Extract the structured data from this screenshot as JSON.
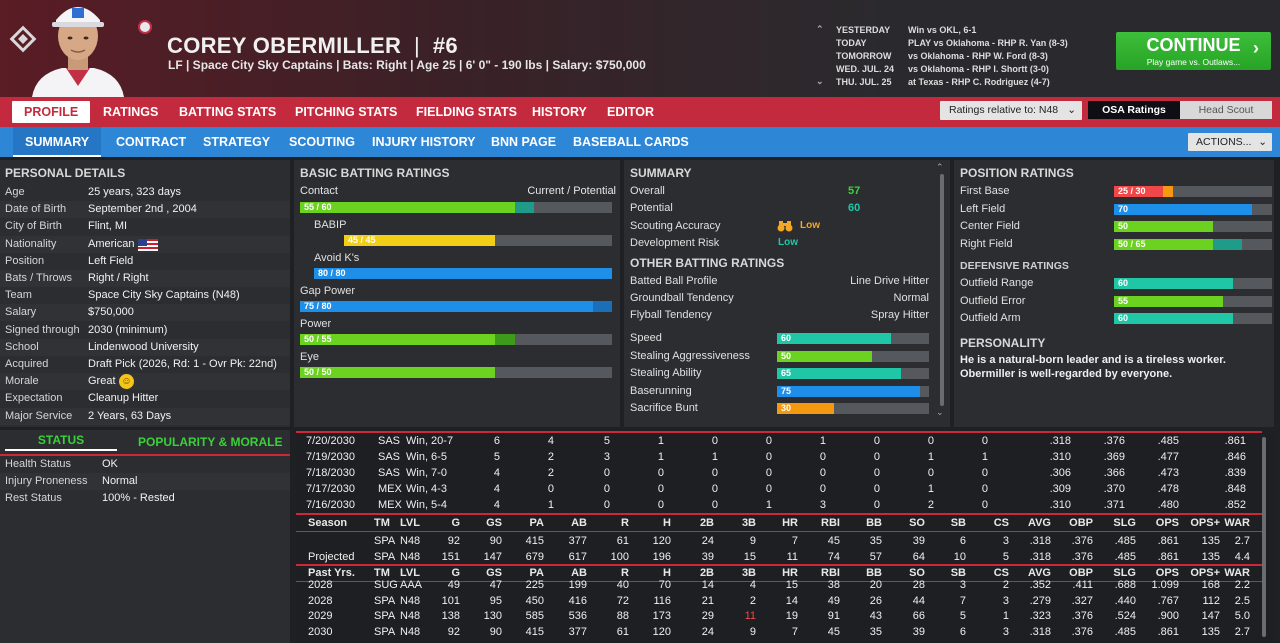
{
  "header": {
    "name": "COREY OBERMILLER",
    "number_sep": "|",
    "number": "#6",
    "info": "LF | Space City Sky Captains  |  Bats: Right  |  Age 25  |  6' 0\" - 190 lbs  |  Salary: $750,000",
    "schedule": [
      {
        "day": "YESTERDAY",
        "game": "Win vs OKL, 6-1"
      },
      {
        "day": "TODAY",
        "game": "PLAY vs Oklahoma - RHP R. Yan (8-3)"
      },
      {
        "day": "TOMORROW",
        "game": "vs Oklahoma - RHP W. Ford (8-3)"
      },
      {
        "day": "WED. JUL. 24",
        "game": "vs Oklahoma - RHP I. Shortt (3-0)"
      },
      {
        "day": "THU. JUL. 25",
        "game": "at Texas - RHP C. Rodriguez (4-7)"
      }
    ],
    "continue_label": "CONTINUE",
    "continue_sub": "Play game vs. Outlaws..."
  },
  "nav_main": [
    "PROFILE",
    "RATINGS",
    "BATTING STATS",
    "PITCHING STATS",
    "FIELDING STATS",
    "HISTORY",
    "EDITOR"
  ],
  "ratings_relative": "Ratings relative to: N48",
  "osa_label": "OSA Ratings",
  "scout_label": "Head Scout",
  "nav_sub": [
    "SUMMARY",
    "CONTRACT",
    "STRATEGY",
    "SCOUTING",
    "INJURY HISTORY",
    "BNN PAGE",
    "BASEBALL CARDS"
  ],
  "actions_label": "ACTIONS...",
  "personal": {
    "title": "PERSONAL DETAILS",
    "rows": [
      {
        "k": "Age",
        "v": "25 years, 323 days"
      },
      {
        "k": "Date of Birth",
        "v": "September 2nd , 2004"
      },
      {
        "k": "City of Birth",
        "v": "Flint, MI"
      },
      {
        "k": "Nationality",
        "v": "American"
      },
      {
        "k": "Position",
        "v": "Left Field"
      },
      {
        "k": "Bats / Throws",
        "v": "Right / Right"
      },
      {
        "k": "Team",
        "v": "Space City Sky Captains (N48)"
      },
      {
        "k": "Salary",
        "v": "$750,000"
      },
      {
        "k": "Signed through",
        "v": "2030 (minimum)"
      },
      {
        "k": "School",
        "v": "Lindenwood University"
      },
      {
        "k": "Acquired",
        "v": "Draft Pick (2026, Rd: 1 - Ovr Pk: 22nd)"
      },
      {
        "k": "Morale",
        "v": "Great"
      },
      {
        "k": "Expectation",
        "v": "Cleanup Hitter"
      },
      {
        "k": "Major Service",
        "v": "2 Years, 63 Days"
      }
    ]
  },
  "status": {
    "tab1": "STATUS",
    "tab2": "POPULARITY & MORALE",
    "rows": [
      {
        "k": "Health Status",
        "v": "OK"
      },
      {
        "k": "Injury Proneness",
        "v": "Normal"
      },
      {
        "k": "Rest Status",
        "v": "100% - Rested"
      }
    ]
  },
  "batting": {
    "title": "BASIC BATTING RATINGS",
    "cp_label": "Current / Potential",
    "ratings": [
      {
        "name": "Contact",
        "label": "55 / 60",
        "cur": 55,
        "pot": 60,
        "color": "#6bd21f",
        "pcolor": "#1f9b8a"
      },
      {
        "name": "BABIP",
        "label": "45 / 45",
        "cur": 45,
        "pot": 45,
        "color": "#f2cf16",
        "pcolor": "#f2cf16"
      },
      {
        "name": "Avoid K's",
        "label": "80 / 80",
        "cur": 80,
        "pot": 80,
        "color": "#1e8fe8",
        "pcolor": "#1e8fe8"
      },
      {
        "name": "Gap Power",
        "label": "75 / 80",
        "cur": 75,
        "pot": 80,
        "color": "#1e8fe8",
        "pcolor": "#1a6fb8"
      },
      {
        "name": "Power",
        "label": "50 / 55",
        "cur": 50,
        "pot": 55,
        "color": "#6bd21f",
        "pcolor": "#3e9a1a"
      },
      {
        "name": "Eye",
        "label": "50 / 50",
        "cur": 50,
        "pot": 50,
        "color": "#6bd21f",
        "pcolor": "#6bd21f"
      }
    ]
  },
  "summary": {
    "title": "SUMMARY",
    "overall_label": "Overall",
    "overall": "57",
    "potential_label": "Potential",
    "potential": "60",
    "scouting_label": "Scouting Accuracy",
    "scouting": "Low",
    "dev_label": "Development Risk",
    "dev": "Low",
    "other_title": "OTHER BATTING RATINGS",
    "other": [
      {
        "k": "Batted Ball Profile",
        "v": "Line Drive Hitter"
      },
      {
        "k": "Groundball Tendency",
        "v": "Normal"
      },
      {
        "k": "Flyball Tendency",
        "v": "Spray Hitter"
      }
    ],
    "bars": [
      {
        "k": "Speed",
        "label": "60",
        "val": 60,
        "color": "#1fc7a6"
      },
      {
        "k": "Stealing Aggressiveness",
        "label": "50",
        "val": 50,
        "color": "#6bd21f"
      },
      {
        "k": "Stealing Ability",
        "label": "65",
        "val": 65,
        "color": "#1fc7a6"
      },
      {
        "k": "Baserunning",
        "label": "75",
        "val": 75,
        "color": "#1e8fe8"
      },
      {
        "k": "Sacrifice Bunt",
        "label": "30",
        "val": 30,
        "color": "#f59a10"
      }
    ]
  },
  "position": {
    "title": "POSITION RATINGS",
    "ratings": [
      {
        "k": "First Base",
        "label": "25 / 30",
        "cur": 25,
        "pot": 30,
        "color": "#f04848",
        "pcolor": "#f59a10"
      },
      {
        "k": "Left Field",
        "label": "70",
        "cur": 70,
        "pot": 70,
        "color": "#1e8fe8",
        "pcolor": "#1e8fe8"
      },
      {
        "k": "Center Field",
        "label": "50",
        "cur": 50,
        "pot": 50,
        "color": "#6bd21f",
        "pcolor": "#6bd21f"
      },
      {
        "k": "Right Field",
        "label": "50 / 65",
        "cur": 50,
        "pot": 65,
        "color": "#6bd21f",
        "pcolor": "#1f9b8a"
      }
    ],
    "def_title": "DEFENSIVE RATINGS",
    "def": [
      {
        "k": "Outfield Range",
        "label": "60",
        "val": 60,
        "color": "#1fc7a6"
      },
      {
        "k": "Outfield Error",
        "label": "55",
        "val": 55,
        "color": "#6bd21f"
      },
      {
        "k": "Outfield Arm",
        "label": "60",
        "val": 60,
        "color": "#1fc7a6"
      }
    ],
    "personality_title": "PERSONALITY",
    "personality": "He is a natural-born leader and is a tireless worker. Obermiller is well-regarded by everyone."
  },
  "stats": {
    "games": [
      [
        "7/20/2030",
        "SAS",
        "Win, 20-7",
        "6",
        "4",
        "5",
        "1",
        "0",
        "0",
        "1",
        "0",
        "0",
        "0",
        ".318",
        ".376",
        ".485",
        ".861"
      ],
      [
        "7/19/2030",
        "SAS",
        "Win, 6-5",
        "5",
        "2",
        "3",
        "1",
        "1",
        "0",
        "0",
        "0",
        "1",
        "1",
        ".310",
        ".369",
        ".477",
        ".846"
      ],
      [
        "7/18/2030",
        "SAS",
        "Win, 7-0",
        "4",
        "2",
        "0",
        "0",
        "0",
        "0",
        "0",
        "0",
        "0",
        "0",
        ".306",
        ".366",
        ".473",
        ".839"
      ],
      [
        "7/17/2030",
        "MEX",
        "Win, 4-3",
        "4",
        "0",
        "0",
        "0",
        "0",
        "0",
        "0",
        "0",
        "1",
        "0",
        ".309",
        ".370",
        ".478",
        ".848"
      ],
      [
        "7/16/2030",
        "MEX",
        "Win, 5-4",
        "4",
        "1",
        "0",
        "0",
        "0",
        "1",
        "3",
        "0",
        "2",
        "0",
        ".310",
        ".371",
        ".480",
        ".852"
      ]
    ],
    "season_header": [
      "Season",
      "TM",
      "LVL",
      "G",
      "GS",
      "PA",
      "AB",
      "R",
      "H",
      "2B",
      "3B",
      "HR",
      "RBI",
      "BB",
      "SO",
      "SB",
      "CS",
      "AVG",
      "OBP",
      "SLG",
      "OPS",
      "OPS+",
      "WAR"
    ],
    "season_rows": [
      [
        "",
        "SPA",
        "N48",
        "92",
        "90",
        "415",
        "377",
        "61",
        "120",
        "24",
        "9",
        "7",
        "45",
        "35",
        "39",
        "6",
        "3",
        ".318",
        ".376",
        ".485",
        ".861",
        "135",
        "2.7"
      ],
      [
        "Projected",
        "SPA",
        "N48",
        "151",
        "147",
        "679",
        "617",
        "100",
        "196",
        "39",
        "15",
        "11",
        "74",
        "57",
        "64",
        "10",
        "5",
        ".318",
        ".376",
        ".485",
        ".861",
        "135",
        "4.4"
      ]
    ],
    "past_header": [
      "Past Yrs.",
      "TM",
      "LVL",
      "G",
      "GS",
      "PA",
      "AB",
      "R",
      "H",
      "2B",
      "3B",
      "HR",
      "RBI",
      "BB",
      "SO",
      "SB",
      "CS",
      "AVG",
      "OBP",
      "SLG",
      "OPS",
      "OPS+",
      "WAR"
    ],
    "past_rows": [
      [
        "2028",
        "SUG",
        "AAA",
        "49",
        "47",
        "225",
        "199",
        "40",
        "70",
        "14",
        "4",
        "15",
        "38",
        "20",
        "28",
        "3",
        "2",
        ".352",
        ".411",
        ".688",
        "1.099",
        "168",
        "2.2"
      ],
      [
        "2028",
        "SPA",
        "N48",
        "101",
        "95",
        "450",
        "416",
        "72",
        "116",
        "21",
        "2",
        "14",
        "49",
        "26",
        "44",
        "7",
        "3",
        ".279",
        ".327",
        ".440",
        ".767",
        "112",
        "2.5"
      ],
      [
        "2029",
        "SPA",
        "N48",
        "138",
        "130",
        "585",
        "536",
        "88",
        "173",
        "29",
        "11",
        "19",
        "91",
        "43",
        "66",
        "5",
        "1",
        ".323",
        ".376",
        ".524",
        ".900",
        "147",
        "5.0"
      ],
      [
        "2030",
        "SPA",
        "N48",
        "92",
        "90",
        "415",
        "377",
        "61",
        "120",
        "24",
        "9",
        "7",
        "45",
        "35",
        "39",
        "6",
        "3",
        ".318",
        ".376",
        ".485",
        ".861",
        "135",
        "2.7"
      ]
    ]
  }
}
